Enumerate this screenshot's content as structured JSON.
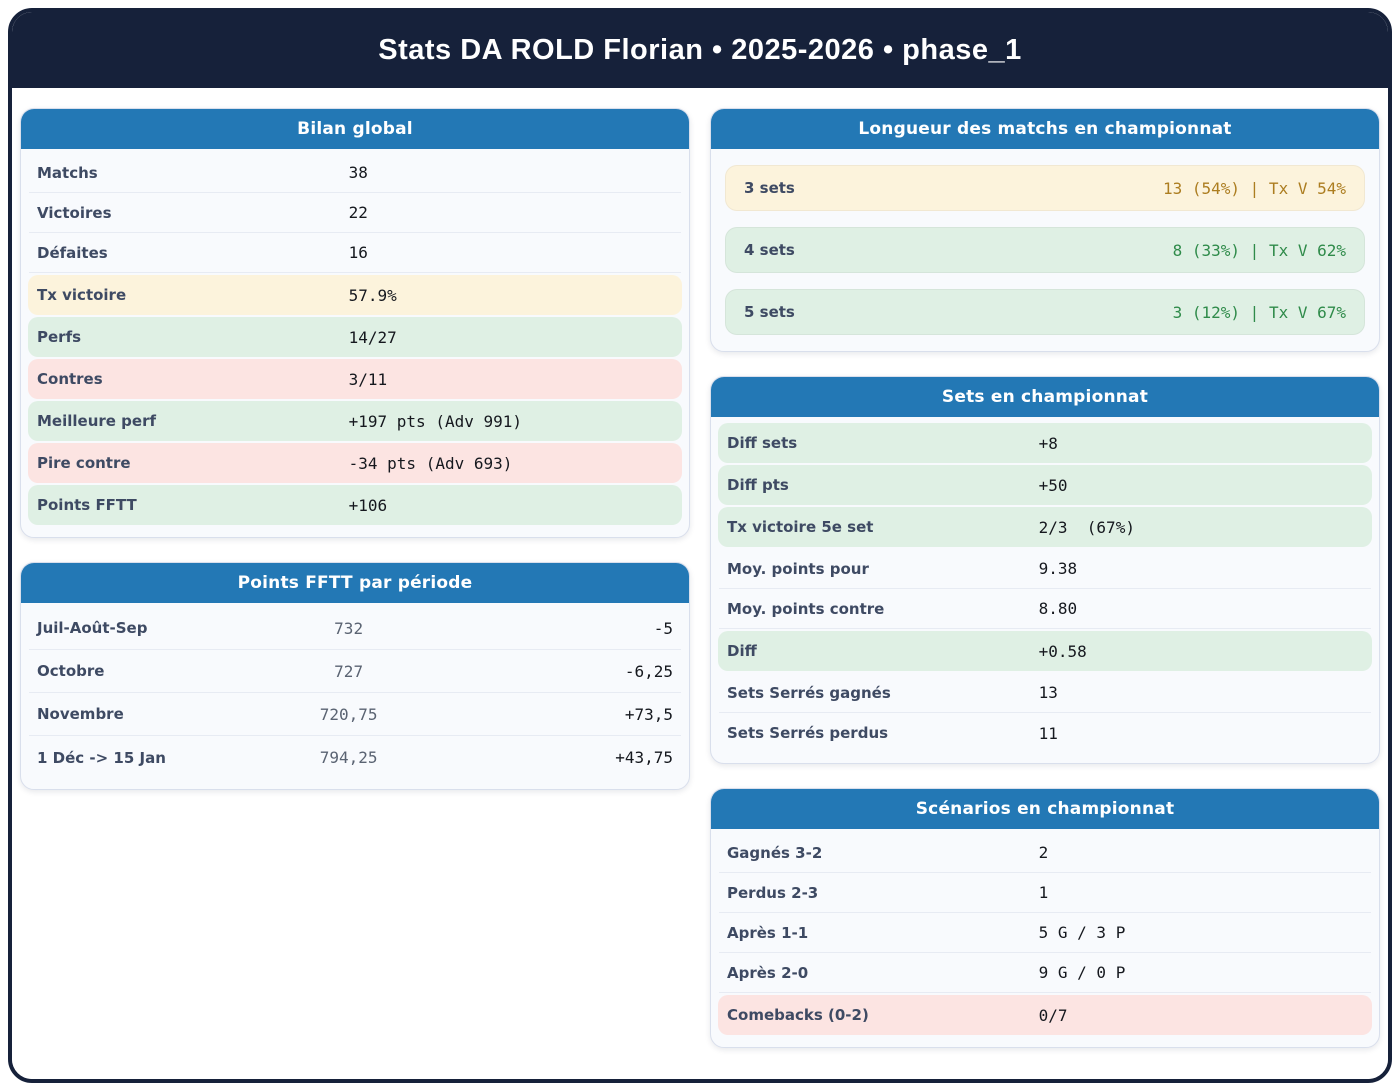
{
  "page": {
    "title": "Stats DA ROLD Florian • 2025-2026 • phase_1"
  },
  "theme": {
    "navy": "#16213A",
    "blue": "#2378B5",
    "card-bg": "#F8FAFD",
    "card-border": "#D9DFEC",
    "sep": "#E7EBF3",
    "label": "#3E4A63",
    "value": "#15181E",
    "muted": "#5A6372",
    "yellow-bg": "#FCF3DC",
    "yellow-text": "#AC7D20",
    "green-bg": "#DFF0E4",
    "green-text": "#2F8B4A",
    "red-bg": "#FCE4E2"
  },
  "cards": {
    "bilan": {
      "title": "Bilan global",
      "rows": [
        {
          "label": "Matchs",
          "value": "38",
          "highlight": "none"
        },
        {
          "label": "Victoires",
          "value": "22",
          "highlight": "none"
        },
        {
          "label": "Défaites",
          "value": "16",
          "highlight": "none"
        },
        {
          "label": "Tx victoire",
          "value": "57.9%",
          "highlight": "yellow"
        },
        {
          "label": "Perfs",
          "value": "14/27",
          "highlight": "green"
        },
        {
          "label": "Contres",
          "value": "3/11",
          "highlight": "red"
        },
        {
          "label": "Meilleure perf",
          "value": "+197 pts (Adv 991)",
          "highlight": "green"
        },
        {
          "label": "Pire contre",
          "value": "-34 pts (Adv 693)",
          "highlight": "red"
        },
        {
          "label": "Points FFTT",
          "value": "+106",
          "highlight": "green"
        }
      ]
    },
    "periodes": {
      "title": "Points FFTT par période",
      "rows": [
        {
          "label": "Juil-Août-Sep",
          "points": "732",
          "delta": "-5"
        },
        {
          "label": "Octobre",
          "points": "727",
          "delta": "-6,25"
        },
        {
          "label": "Novembre",
          "points": "720,75",
          "delta": "+73,5"
        },
        {
          "label": "1 Déc -> 15 Jan",
          "points": "794,25",
          "delta": "+43,75"
        }
      ]
    },
    "longueur": {
      "title": "Longueur des matchs en championnat",
      "rows": [
        {
          "label": "3 sets",
          "value": "13 (54%) | Tx V 54%",
          "highlight": "yellow"
        },
        {
          "label": "4 sets",
          "value": "8 (33%) | Tx V 62%",
          "highlight": "green"
        },
        {
          "label": "5 sets",
          "value": "3 (12%) | Tx V 67%",
          "highlight": "green"
        }
      ]
    },
    "sets": {
      "title": "Sets en championnat",
      "rows": [
        {
          "label": "Diff sets",
          "value": "+8",
          "highlight": "green"
        },
        {
          "label": "Diff pts",
          "value": "+50",
          "highlight": "green"
        },
        {
          "label": "Tx victoire 5e set",
          "value": "2/3  (67%)",
          "highlight": "green"
        },
        {
          "label": "Moy. points pour",
          "value": "9.38",
          "highlight": "none"
        },
        {
          "label": "Moy. points contre",
          "value": "8.80",
          "highlight": "none"
        },
        {
          "label": "Diff",
          "value": "+0.58",
          "highlight": "green"
        },
        {
          "label": "Sets Serrés gagnés",
          "value": "13",
          "highlight": "none"
        },
        {
          "label": "Sets Serrés perdus",
          "value": "11",
          "highlight": "none"
        }
      ]
    },
    "scenarios": {
      "title": "Scénarios en championnat",
      "rows": [
        {
          "label": "Gagnés 3-2",
          "value": "2",
          "highlight": "none"
        },
        {
          "label": "Perdus 2-3",
          "value": "1",
          "highlight": "none"
        },
        {
          "label": "Après 1-1",
          "value": "5 G / 3 P",
          "highlight": "none"
        },
        {
          "label": "Après 2-0",
          "value": "9 G / 0 P",
          "highlight": "none"
        },
        {
          "label": "Comebacks (0-2)",
          "value": "0/7",
          "highlight": "red"
        }
      ]
    }
  }
}
